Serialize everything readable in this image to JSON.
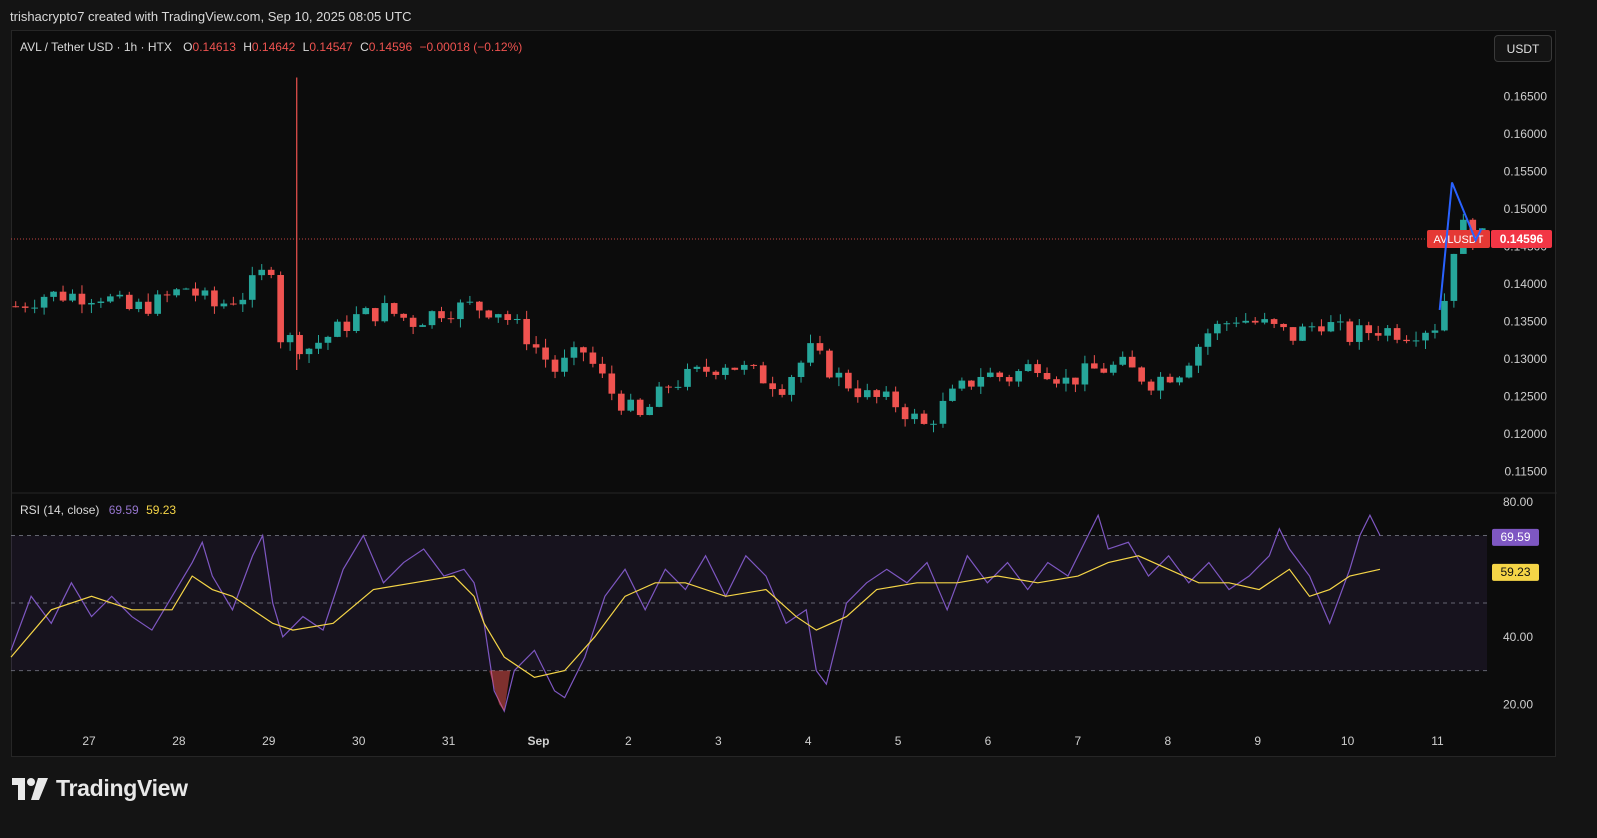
{
  "header": {
    "credit": "trishacrypto7 created with TradingView.com, Sep 10, 2025 08:05 UTC"
  },
  "brand": {
    "logo_text": "TradingView",
    "logo_icon": "tradingview-logo-icon"
  },
  "toolbar": {
    "currency": "USDT"
  },
  "legend": {
    "symbol": "AVL / Tether USD · 1h · HTX",
    "open_label": "O",
    "open": "0.14613",
    "high_label": "H",
    "high": "0.14642",
    "low_label": "L",
    "low": "0.14547",
    "close_label": "C",
    "close": "0.14596",
    "change": "−0.00018 (−0.12%)"
  },
  "rsi_legend": {
    "title": "RSI (14, close)",
    "rsi": "69.59",
    "ma": "59.23"
  },
  "colors": {
    "up": "#26a69a",
    "down": "#ef5350",
    "rsi": "#7e57c2",
    "rsi_ma": "#f5d547",
    "drawing": "#2962ff",
    "bg": "#0c0c0c"
  },
  "chart_data": [
    {
      "type": "candlestick",
      "symbol": "AVLUSDT",
      "interval": "1h",
      "price_axis_ticks": [
        "0.16500",
        "0.16000",
        "0.15500",
        "0.15000",
        "0.14500",
        "0.14000",
        "0.13500",
        "0.13000",
        "0.12500",
        "0.12000",
        "0.11500"
      ],
      "ylim": [
        0.1125,
        0.1685
      ],
      "last_price": {
        "label": "AVLUSDT",
        "value": "0.14596",
        "numeric": 0.14596
      },
      "x_ticks": [
        "27",
        "28",
        "29",
        "30",
        "31",
        "Sep",
        "2",
        "3",
        "4",
        "5",
        "6",
        "7",
        "8",
        "9",
        "10",
        "11"
      ],
      "close_path": [
        [
          0,
          0.137
        ],
        [
          3,
          0.1385
        ],
        [
          6,
          0.1385
        ],
        [
          9,
          0.1385
        ],
        [
          12,
          0.1365
        ],
        [
          15,
          0.1375
        ],
        [
          18,
          0.1395
        ],
        [
          21,
          0.137
        ],
        [
          24,
          0.1385
        ],
        [
          27,
          0.1425
        ],
        [
          28,
          0.133
        ],
        [
          30,
          0.132
        ],
        [
          31,
          0.1315
        ],
        [
          33,
          0.133
        ],
        [
          36,
          0.1355
        ],
        [
          39,
          0.1365
        ],
        [
          42,
          0.135
        ],
        [
          45,
          0.1365
        ],
        [
          48,
          0.137
        ],
        [
          51,
          0.1365
        ],
        [
          54,
          0.133
        ],
        [
          57,
          0.1285
        ],
        [
          60,
          0.131
        ],
        [
          63,
          0.1255
        ],
        [
          66,
          0.122
        ],
        [
          69,
          0.1265
        ],
        [
          72,
          0.128
        ],
        [
          75,
          0.1295
        ],
        [
          78,
          0.128
        ],
        [
          81,
          0.1265
        ],
        [
          84,
          0.131
        ],
        [
          87,
          0.1275
        ],
        [
          90,
          0.125
        ],
        [
          93,
          0.124
        ],
        [
          96,
          0.121
        ],
        [
          99,
          0.125
        ],
        [
          102,
          0.128
        ],
        [
          105,
          0.1275
        ],
        [
          108,
          0.1295
        ],
        [
          111,
          0.127
        ],
        [
          114,
          0.1285
        ],
        [
          117,
          0.129
        ],
        [
          120,
          0.127
        ],
        [
          123,
          0.1285
        ],
        [
          126,
          0.1335
        ],
        [
          129,
          0.1355
        ],
        [
          132,
          0.1345
        ],
        [
          135,
          0.133
        ],
        [
          138,
          0.135
        ],
        [
          141,
          0.133
        ],
        [
          144,
          0.134
        ],
        [
          147,
          0.1335
        ],
        [
          150,
          0.1345
        ],
        [
          151,
          0.138
        ],
        [
          152,
          0.145
        ],
        [
          153,
          0.1475
        ],
        [
          154,
          0.1462
        ],
        [
          155,
          0.146
        ]
      ],
      "notable_wicks": [
        {
          "x": 29.7,
          "high": 0.1675,
          "low": 0.1285
        }
      ]
    },
    {
      "type": "line",
      "title": "RSI (14, close)",
      "yaxis_ticks": [
        "80.00",
        "40.00",
        "20.00"
      ],
      "ylim": [
        13,
        82
      ],
      "bands": [
        70,
        50,
        30
      ],
      "series": [
        {
          "name": "RSI",
          "last": "69.59",
          "last_numeric": 69.59,
          "path": [
            [
              0,
              36
            ],
            [
              2,
              52
            ],
            [
              4,
              44
            ],
            [
              6,
              56
            ],
            [
              8,
              46
            ],
            [
              10,
              52
            ],
            [
              12,
              46
            ],
            [
              14,
              42
            ],
            [
              16,
              52
            ],
            [
              18,
              62
            ],
            [
              19,
              68
            ],
            [
              20,
              58
            ],
            [
              22,
              48
            ],
            [
              24,
              64
            ],
            [
              25,
              70
            ],
            [
              26,
              50
            ],
            [
              27,
              40
            ],
            [
              29,
              46
            ],
            [
              31,
              42
            ],
            [
              33,
              60
            ],
            [
              35,
              70
            ],
            [
              37,
              56
            ],
            [
              39,
              62
            ],
            [
              41,
              66
            ],
            [
              43,
              58
            ],
            [
              45,
              60
            ],
            [
              46,
              56
            ],
            [
              47,
              44
            ],
            [
              48,
              24
            ],
            [
              49,
              18
            ],
            [
              50,
              30
            ],
            [
              52,
              36
            ],
            [
              54,
              24
            ],
            [
              55,
              22
            ],
            [
              57,
              34
            ],
            [
              59,
              52
            ],
            [
              61,
              60
            ],
            [
              63,
              48
            ],
            [
              65,
              60
            ],
            [
              67,
              54
            ],
            [
              69,
              64
            ],
            [
              71,
              52
            ],
            [
              73,
              64
            ],
            [
              75,
              58
            ],
            [
              77,
              44
            ],
            [
              79,
              48
            ],
            [
              80,
              30
            ],
            [
              81,
              26
            ],
            [
              83,
              50
            ],
            [
              85,
              56
            ],
            [
              87,
              60
            ],
            [
              89,
              56
            ],
            [
              91,
              62
            ],
            [
              93,
              48
            ],
            [
              95,
              64
            ],
            [
              97,
              56
            ],
            [
              99,
              62
            ],
            [
              101,
              54
            ],
            [
              103,
              62
            ],
            [
              105,
              58
            ],
            [
              107,
              70
            ],
            [
              108,
              76
            ],
            [
              109,
              66
            ],
            [
              111,
              68
            ],
            [
              113,
              58
            ],
            [
              115,
              64
            ],
            [
              117,
              56
            ],
            [
              119,
              62
            ],
            [
              121,
              54
            ],
            [
              123,
              58
            ],
            [
              125,
              64
            ],
            [
              126,
              72
            ],
            [
              127,
              66
            ],
            [
              129,
              58
            ],
            [
              131,
              44
            ],
            [
              133,
              60
            ],
            [
              134,
              70
            ],
            [
              135,
              76
            ],
            [
              136,
              70
            ]
          ]
        },
        {
          "name": "RSI-based MA",
          "last": "59.23",
          "last_numeric": 59.23,
          "path": [
            [
              0,
              34
            ],
            [
              4,
              48
            ],
            [
              8,
              52
            ],
            [
              12,
              48
            ],
            [
              16,
              48
            ],
            [
              18,
              58
            ],
            [
              20,
              54
            ],
            [
              22,
              52
            ],
            [
              26,
              44
            ],
            [
              28,
              42
            ],
            [
              32,
              44
            ],
            [
              36,
              54
            ],
            [
              40,
              56
            ],
            [
              44,
              58
            ],
            [
              46,
              52
            ],
            [
              47,
              44
            ],
            [
              49,
              34
            ],
            [
              52,
              28
            ],
            [
              55,
              30
            ],
            [
              58,
              40
            ],
            [
              61,
              52
            ],
            [
              64,
              56
            ],
            [
              67,
              56
            ],
            [
              71,
              52
            ],
            [
              75,
              54
            ],
            [
              78,
              46
            ],
            [
              80,
              42
            ],
            [
              83,
              46
            ],
            [
              86,
              54
            ],
            [
              90,
              56
            ],
            [
              94,
              56
            ],
            [
              98,
              58
            ],
            [
              102,
              56
            ],
            [
              106,
              58
            ],
            [
              109,
              62
            ],
            [
              112,
              64
            ],
            [
              115,
              60
            ],
            [
              118,
              56
            ],
            [
              121,
              56
            ],
            [
              124,
              54
            ],
            [
              127,
              60
            ],
            [
              129,
              52
            ],
            [
              131,
              54
            ],
            [
              133,
              58
            ],
            [
              136,
              60
            ]
          ]
        }
      ]
    }
  ]
}
